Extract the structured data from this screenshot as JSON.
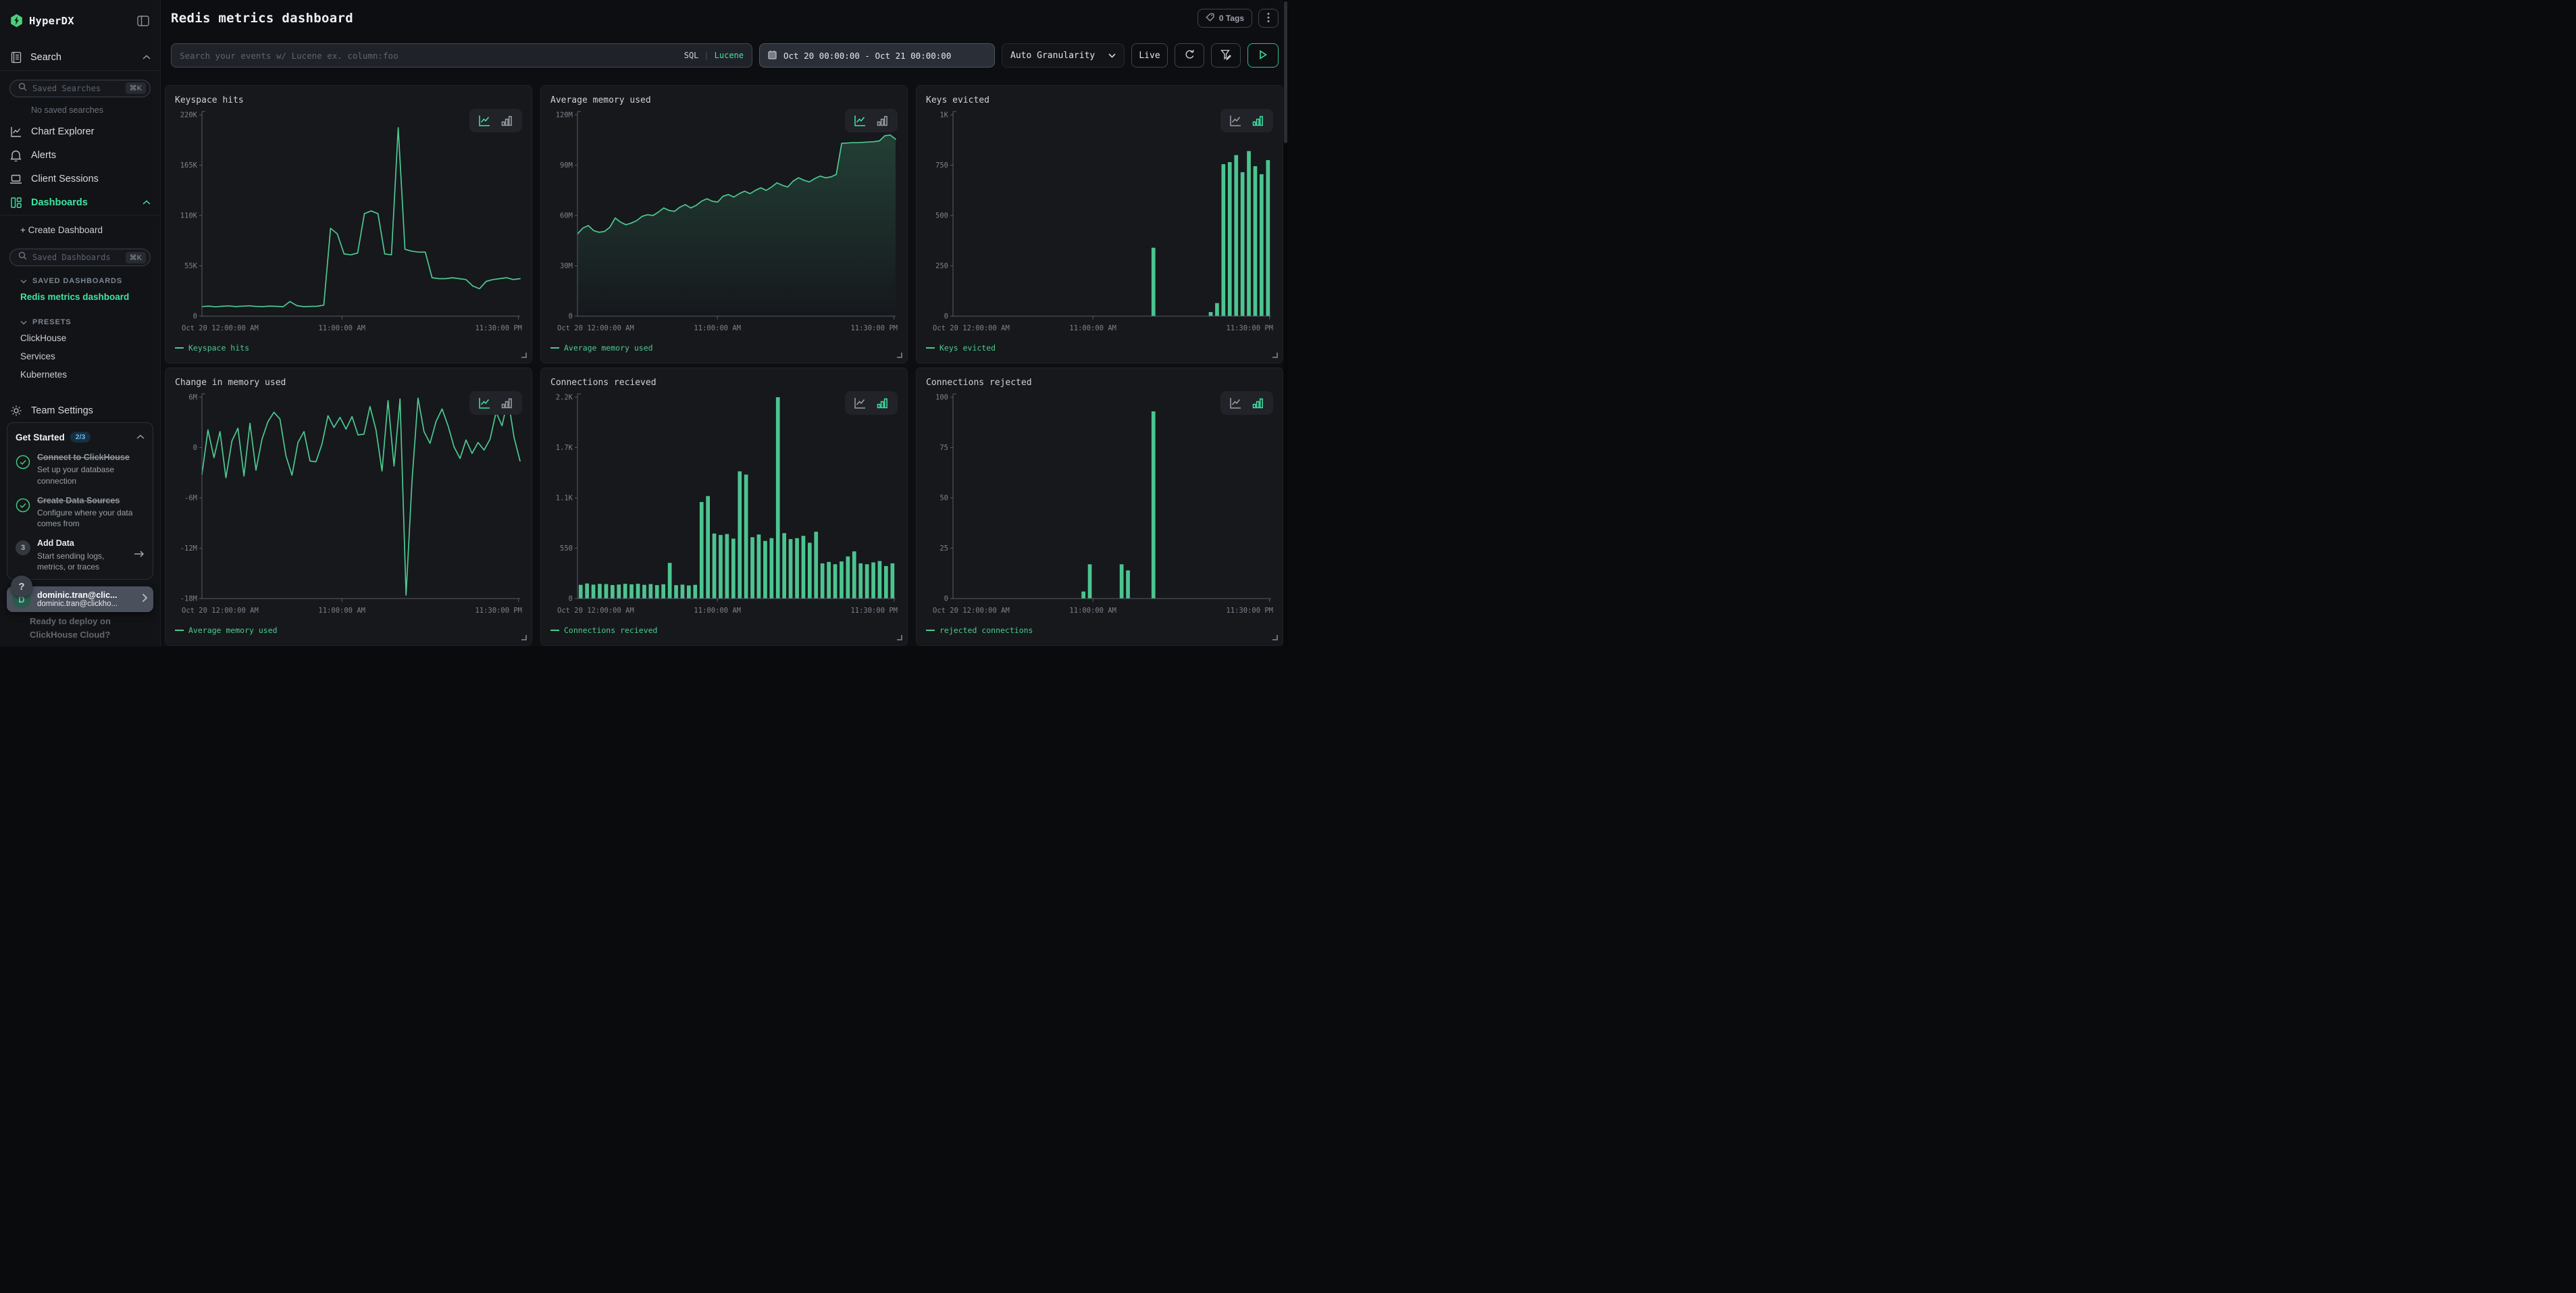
{
  "sidebar": {
    "brand": "HyperDX",
    "nav": {
      "search_label": "Search",
      "saved_searches_placeholder": "Saved Searches",
      "saved_searches_shortcut": "⌘K",
      "no_saved_note": "No saved searches",
      "chart_explorer": "Chart Explorer",
      "alerts": "Alerts",
      "client_sessions": "Client Sessions",
      "dashboards": "Dashboards",
      "create_dashboard": "+ Create Dashboard",
      "saved_dashboards_placeholder": "Saved Dashboards",
      "saved_dashboards_shortcut": "⌘K",
      "saved_dashboards_header": "SAVED DASHBOARDS",
      "active_dashboard": "Redis metrics dashboard",
      "presets_header": "PRESETS",
      "presets": [
        "ClickHouse",
        "Services",
        "Kubernetes"
      ],
      "team_settings": "Team Settings"
    },
    "get_started": {
      "title": "Get Started",
      "progress": "2/3",
      "items": [
        {
          "title": "Connect to ClickHouse",
          "desc": "Set up your database connection"
        },
        {
          "title": "Create Data Sources",
          "desc": "Configure where your data comes from"
        },
        {
          "title": "Add Data",
          "desc": "Start sending logs, metrics, or traces",
          "step": "3"
        }
      ],
      "hidden_item_line1": "Ready to deploy on",
      "hidden_item_line2": "ClickHouse Cloud?"
    },
    "help_label": "?",
    "user": {
      "initial": "D",
      "name": "dominic.tran@clic...",
      "email": "dominic.tran@clickho..."
    }
  },
  "header": {
    "title": "Redis metrics dashboard",
    "tags_label": "0 Tags"
  },
  "filters": {
    "search_placeholder": "Search your events w/ Lucene ex. column:foo",
    "sql_label": "SQL",
    "divider": "|",
    "lucene_label": "Lucene",
    "date_range": "Oct 20 00:00:00 - Oct 21 00:00:00",
    "granularity": "Auto Granularity",
    "live_label": "Live"
  },
  "colors": {
    "accent": "#3ee6a4",
    "chart": "#4ec98f",
    "bar": "#4cc490"
  },
  "chart_data": [
    {
      "type": "line",
      "title": "Keyspace hits",
      "legend": "Keyspace hits",
      "ylim": [
        0,
        220000
      ],
      "yticks": [
        "220K",
        "165K",
        "110K",
        "55K",
        "0"
      ],
      "xticks": [
        "Oct 20 12:00:00 AM",
        "11:00:00 AM",
        "11:30:00 PM"
      ],
      "values": [
        10500,
        11000,
        10200,
        10800,
        11200,
        10400,
        10900,
        11300,
        10600,
        10400,
        11000,
        10700,
        10300,
        16000,
        11500,
        10400,
        10600,
        10800,
        12000,
        96000,
        90000,
        68000,
        67000,
        69000,
        112000,
        115000,
        112000,
        68000,
        67000,
        206000,
        73000,
        71000,
        70000,
        70000,
        42000,
        41000,
        41000,
        42000,
        41000,
        40000,
        33000,
        30000,
        38000,
        40000,
        41000,
        42000,
        40000,
        41000
      ]
    },
    {
      "type": "line",
      "fill": true,
      "title": "Average memory used",
      "legend": "Average memory used",
      "ylim": [
        0,
        120000000
      ],
      "yticks": [
        "120M",
        "90M",
        "60M",
        "30M",
        "0"
      ],
      "xticks": [
        "Oct 20 12:00:00 AM",
        "11:00:00 AM",
        "11:30:00 PM"
      ],
      "values": [
        49000000,
        52500000,
        54000000,
        51000000,
        50000000,
        50500000,
        53000000,
        58500000,
        56000000,
        54500000,
        55500000,
        57000000,
        59500000,
        60500000,
        60000000,
        62000000,
        64500000,
        63000000,
        62500000,
        65000000,
        66500000,
        64500000,
        66000000,
        68500000,
        70000000,
        68500000,
        68000000,
        71500000,
        72500000,
        71000000,
        73000000,
        74500000,
        73000000,
        75000000,
        76500000,
        75000000,
        77000000,
        79500000,
        78000000,
        77000000,
        80500000,
        82500000,
        81000000,
        80000000,
        82000000,
        83500000,
        82500000,
        83000000,
        84500000,
        103000000,
        103200000,
        103400000,
        103400000,
        103600000,
        103800000,
        104000000,
        104500000,
        107500000,
        108000000,
        105500000
      ]
    },
    {
      "type": "bar",
      "title": "Keys evicted",
      "legend": "Keys evicted",
      "ylim": [
        0,
        1000
      ],
      "yticks": [
        "1K",
        "750",
        "500",
        "250",
        "0"
      ],
      "xticks": [
        "Oct 20 12:00:00 AM",
        "11:00:00 AM",
        "11:30:00 PM"
      ],
      "values": [
        0,
        0,
        0,
        0,
        0,
        0,
        0,
        0,
        0,
        0,
        0,
        0,
        0,
        0,
        0,
        0,
        0,
        0,
        0,
        0,
        0,
        0,
        0,
        0,
        0,
        0,
        0,
        0,
        0,
        0,
        0,
        340,
        0,
        0,
        0,
        0,
        0,
        0,
        0,
        0,
        20,
        65,
        755,
        765,
        800,
        715,
        820,
        745,
        705,
        775
      ]
    },
    {
      "type": "line",
      "title": "Change in memory used",
      "legend": "Average memory used",
      "ylim": [
        -18000000,
        6000000
      ],
      "yticks": [
        "6M",
        "0",
        "-6M",
        "-12M",
        "-18M"
      ],
      "xticks": [
        "Oct 20 12:00:00 AM",
        "11:00:00 AM",
        "11:30:00 PM"
      ],
      "values": [
        -3200000,
        2100000,
        -1200000,
        1900000,
        -3600000,
        800000,
        2300000,
        -3400000,
        2900000,
        -2700000,
        1000000,
        3100000,
        4200000,
        3400000,
        -1000000,
        -3300000,
        600000,
        1900000,
        -1600000,
        -1700000,
        400000,
        3800000,
        2400000,
        3600000,
        2200000,
        3700000,
        1500000,
        1600000,
        4900000,
        2100000,
        -2800000,
        5600000,
        -2200000,
        5800000,
        -17600000,
        -4000000,
        5900000,
        1900000,
        500000,
        3100000,
        4600000,
        2600000,
        100000,
        -1300000,
        900000,
        -700000,
        600000,
        -300000,
        1000000,
        4200000,
        2600000,
        5800000,
        1200000,
        -1600000
      ]
    },
    {
      "type": "bar",
      "title": "Connections recieved",
      "legend": "Connections recieved",
      "ylim": [
        0,
        2200
      ],
      "yticks": [
        "2.2K",
        "1.7K",
        "1.1K",
        "550",
        "0"
      ],
      "xticks": [
        "Oct 20 12:00:00 AM",
        "11:00:00 AM",
        "11:30:00 PM"
      ],
      "values": [
        150,
        165,
        152,
        160,
        158,
        148,
        153,
        161,
        155,
        162,
        150,
        158,
        147,
        156,
        390,
        146,
        152,
        143,
        150,
        1055,
        1120,
        710,
        695,
        705,
        655,
        1390,
        1355,
        670,
        700,
        630,
        660,
        2200,
        715,
        650,
        660,
        685,
        610,
        730,
        385,
        400,
        375,
        405,
        460,
        515,
        385,
        375,
        395,
        410,
        355,
        385
      ]
    },
    {
      "type": "bar",
      "title": "Connections rejected",
      "legend": "rejected connections",
      "ylim": [
        0,
        100
      ],
      "yticks": [
        "100",
        "75",
        "50",
        "25",
        "0"
      ],
      "xticks": [
        "Oct 20 12:00:00 AM",
        "11:00:00 AM",
        "11:30:00 PM"
      ],
      "values": [
        0,
        0,
        0,
        0,
        0,
        0,
        0,
        0,
        0,
        0,
        0,
        0,
        0,
        0,
        0,
        0,
        0,
        0,
        0,
        0,
        3.5,
        17,
        0,
        0,
        0,
        0,
        17,
        14,
        0,
        0,
        0,
        93,
        0,
        0,
        0,
        0,
        0,
        0,
        0,
        0,
        0,
        0,
        0,
        0,
        0,
        0,
        0,
        0,
        0,
        0
      ]
    }
  ]
}
